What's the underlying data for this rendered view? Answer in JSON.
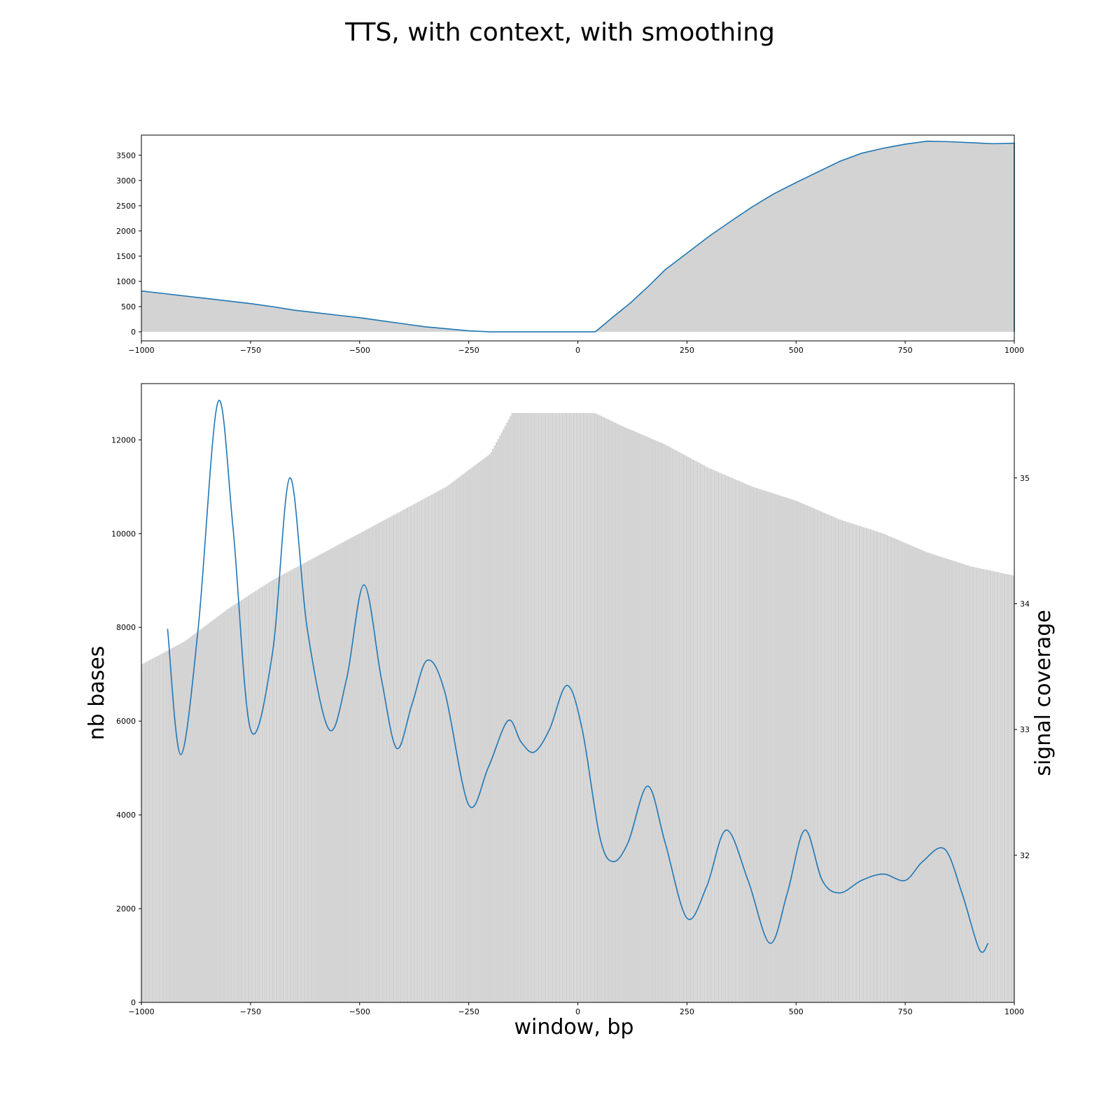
{
  "figure": {
    "title": "TTS, with context, with smoothing"
  },
  "chart_data": [
    {
      "type": "area",
      "panel": "top",
      "xlim": [
        -1000,
        1000
      ],
      "ylim": [
        -180,
        3900
      ],
      "xticks": [
        -1000,
        -750,
        -500,
        -250,
        0,
        250,
        500,
        750,
        1000
      ],
      "xtick_labels": [
        "−1000",
        "−750",
        "−500",
        "−250",
        "0",
        "250",
        "500",
        "750",
        "1000"
      ],
      "yticks": [
        0,
        500,
        1000,
        1500,
        2000,
        2500,
        3000,
        3500
      ],
      "ytick_labels": [
        "0",
        "500",
        "1000",
        "1500",
        "2000",
        "2500",
        "3000",
        "3500"
      ],
      "bars_color": "#d3d3d3",
      "line_color": "#1f77b4",
      "x": [
        -1000,
        -950,
        -900,
        -850,
        -800,
        -750,
        -700,
        -650,
        -600,
        -550,
        -500,
        -450,
        -400,
        -350,
        -300,
        -250,
        -200,
        -150,
        -100,
        -50,
        0,
        40,
        80,
        120,
        160,
        200,
        250,
        300,
        350,
        400,
        450,
        500,
        550,
        600,
        650,
        700,
        750,
        800,
        850,
        900,
        950,
        1000
      ],
      "y": [
        810,
        760,
        710,
        660,
        610,
        560,
        500,
        430,
        380,
        330,
        280,
        220,
        160,
        100,
        60,
        20,
        0,
        0,
        0,
        0,
        0,
        0,
        290,
        570,
        890,
        1230,
        1560,
        1890,
        2190,
        2480,
        2740,
        2960,
        3170,
        3380,
        3540,
        3640,
        3720,
        3780,
        3770,
        3750,
        3730,
        3740
      ]
    },
    {
      "type": "area",
      "panel": "bottom",
      "xlabel": "window, bp",
      "ylabel": "nb bases",
      "y2label": "signal coverage",
      "xlim": [
        -1000,
        1000
      ],
      "ylim": [
        0,
        13200
      ],
      "y2lim": [
        30.83,
        35.75
      ],
      "xticks": [
        -1000,
        -750,
        -500,
        -250,
        0,
        250,
        500,
        750,
        1000
      ],
      "xtick_labels": [
        "−1000",
        "−750",
        "−500",
        "−250",
        "0",
        "250",
        "500",
        "750",
        "1000"
      ],
      "yticks": [
        0,
        2000,
        4000,
        6000,
        8000,
        10000,
        12000
      ],
      "ytick_labels": [
        "0",
        "2000",
        "4000",
        "6000",
        "8000",
        "10000",
        "12000"
      ],
      "y2ticks": [
        32,
        33,
        34,
        35
      ],
      "y2tick_labels": [
        "32",
        "33",
        "34",
        "35"
      ],
      "bars_color": "#d3d3d3",
      "line_color": "#1f77b4",
      "bars": {
        "x": [
          -1000,
          -900,
          -800,
          -700,
          -600,
          -500,
          -400,
          -300,
          -200,
          -150,
          -100,
          -50,
          0,
          40,
          100,
          200,
          300,
          400,
          500,
          600,
          700,
          800,
          900,
          1000
        ],
        "y": [
          7200,
          7700,
          8400,
          9000,
          9500,
          10000,
          10500,
          11000,
          11700,
          12570,
          12570,
          12570,
          12570,
          12570,
          12300,
          11900,
          11400,
          11000,
          10700,
          10300,
          10000,
          9600,
          9300,
          9100
        ]
      },
      "signal": {
        "x": [
          -940,
          -910,
          -870,
          -825,
          -790,
          -750,
          -700,
          -660,
          -620,
          -570,
          -530,
          -490,
          -450,
          -415,
          -380,
          -345,
          -305,
          -250,
          -205,
          -160,
          -130,
          -100,
          -65,
          -25,
          10,
          50,
          80,
          115,
          160,
          200,
          250,
          295,
          340,
          390,
          440,
          480,
          520,
          560,
          600,
          650,
          700,
          750,
          790,
          840,
          880,
          920,
          940
        ],
        "y": [
          33.8,
          32.8,
          33.8,
          35.6,
          34.6,
          33.0,
          33.6,
          35.0,
          33.8,
          33.0,
          33.4,
          34.15,
          33.4,
          32.85,
          33.2,
          33.55,
          33.3,
          32.4,
          32.7,
          33.07,
          32.9,
          32.82,
          33.0,
          33.35,
          33.0,
          32.15,
          31.95,
          32.1,
          32.55,
          32.1,
          31.5,
          31.75,
          32.2,
          31.8,
          31.3,
          31.7,
          32.2,
          31.8,
          31.7,
          31.8,
          31.85,
          31.8,
          31.95,
          32.05,
          31.7,
          31.25,
          31.3
        ]
      }
    }
  ]
}
